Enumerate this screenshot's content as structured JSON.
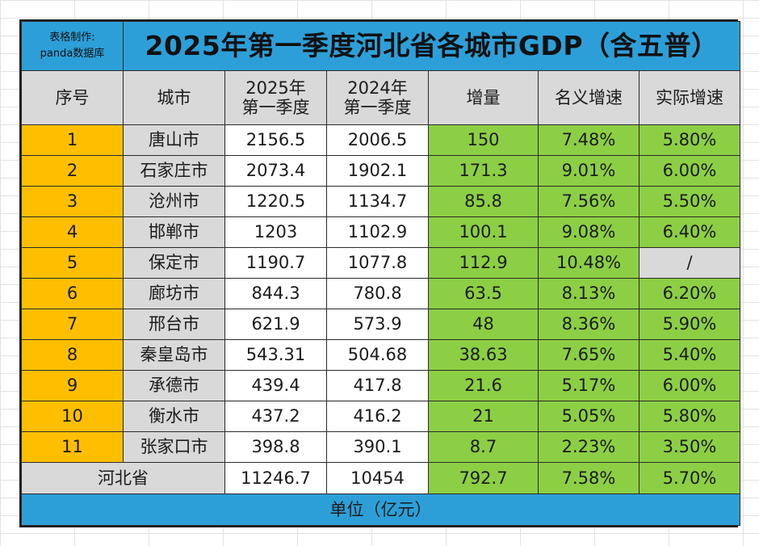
{
  "title": {
    "maker_line1": "表格制作:",
    "maker_line2": "panda数据库",
    "main": "2025年第一季度河北省各城市GDP（含五普）"
  },
  "headers": {
    "seq": "序号",
    "city": "城市",
    "y2025_line1": "2025年",
    "y2025_line2": "第一季度",
    "y2024_line1": "2024年",
    "y2024_line2": "第一季度",
    "increase": "增量",
    "nominal": "名义增速",
    "real": "实际增速"
  },
  "rows": [
    {
      "seq": "1",
      "city": "唐山市",
      "gdp2025": "2156.5",
      "gdp2024": "2006.5",
      "increase": "150",
      "nominal": "7.48%",
      "real": "5.80%"
    },
    {
      "seq": "2",
      "city": "石家庄市",
      "gdp2025": "2073.4",
      "gdp2024": "1902.1",
      "increase": "171.3",
      "nominal": "9.01%",
      "real": "6.00%"
    },
    {
      "seq": "3",
      "city": "沧州市",
      "gdp2025": "1220.5",
      "gdp2024": "1134.7",
      "increase": "85.8",
      "nominal": "7.56%",
      "real": "5.50%"
    },
    {
      "seq": "4",
      "city": "邯郸市",
      "gdp2025": "1203",
      "gdp2024": "1102.9",
      "increase": "100.1",
      "nominal": "9.08%",
      "real": "6.40%"
    },
    {
      "seq": "5",
      "city": "保定市",
      "gdp2025": "1190.7",
      "gdp2024": "1077.8",
      "increase": "112.9",
      "nominal": "10.48%",
      "real": "/"
    },
    {
      "seq": "6",
      "city": "廊坊市",
      "gdp2025": "844.3",
      "gdp2024": "780.8",
      "increase": "63.5",
      "nominal": "8.13%",
      "real": "6.20%"
    },
    {
      "seq": "7",
      "city": "邢台市",
      "gdp2025": "621.9",
      "gdp2024": "573.9",
      "increase": "48",
      "nominal": "8.36%",
      "real": "5.90%"
    },
    {
      "seq": "8",
      "city": "秦皇岛市",
      "gdp2025": "543.31",
      "gdp2024": "504.68",
      "increase": "38.63",
      "nominal": "7.65%",
      "real": "5.40%"
    },
    {
      "seq": "9",
      "city": "承德市",
      "gdp2025": "439.4",
      "gdp2024": "417.8",
      "increase": "21.6",
      "nominal": "5.17%",
      "real": "6.00%"
    },
    {
      "seq": "10",
      "city": "衡水市",
      "gdp2025": "437.2",
      "gdp2024": "416.2",
      "increase": "21",
      "nominal": "5.05%",
      "real": "5.80%"
    },
    {
      "seq": "11",
      "city": "张家口市",
      "gdp2025": "398.8",
      "gdp2024": "390.1",
      "increase": "8.7",
      "nominal": "2.23%",
      "real": "3.50%"
    }
  ],
  "total": {
    "label": "河北省",
    "gdp2025": "11246.7",
    "gdp2024": "10454",
    "increase": "792.7",
    "nominal": "7.58%",
    "real": "5.70%"
  },
  "footer": "单位（亿元）",
  "colors": {
    "title_blue": "#2d9fd8",
    "seq_orange": "#ffbf00",
    "header_gray": "#d9d9d9",
    "value_green": "#8ccf45"
  }
}
